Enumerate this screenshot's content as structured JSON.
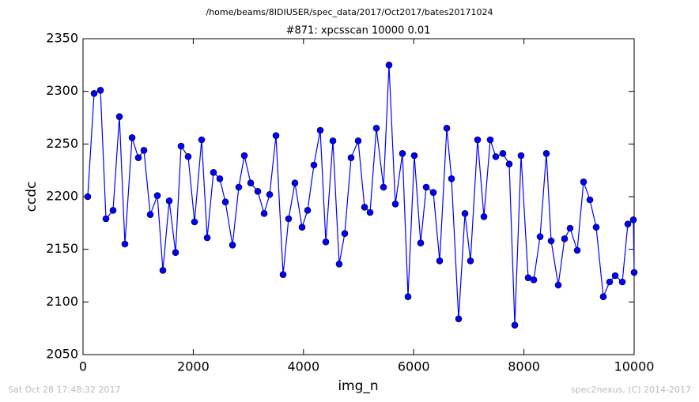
{
  "chart_data": {
    "type": "line",
    "suptitle": "/home/beams/8IDIUSER/spec_data/2017/Oct2017/bates20171024",
    "title": "#871: xpcsscan 10000 0.01",
    "x_label": "img_n",
    "y_label": "ccdc",
    "timestamp": "Sat Oct 28 17:48:32 2017",
    "credit": "spec2nexus, (C) 2014-2017",
    "xlim": [
      0,
      10000
    ],
    "xticks": [
      0,
      2000,
      4000,
      6000,
      8000,
      10000
    ],
    "ylim": [
      2050,
      2350
    ],
    "yticks": [
      2050,
      2100,
      2150,
      2200,
      2250,
      2300,
      2350
    ],
    "grid": false,
    "x": [
      86,
      201,
      316,
      416,
      545,
      660,
      760,
      890,
      1004,
      1105,
      1220,
      1349,
      1449,
      1564,
      1679,
      1779,
      1908,
      2023,
      2152,
      2253,
      2367,
      2482,
      2583,
      2712,
      2826,
      2927,
      3042,
      3171,
      3286,
      3386,
      3501,
      3630,
      3730,
      3845,
      3974,
      4075,
      4189,
      4304,
      4405,
      4534,
      4648,
      4749,
      4864,
      4993,
      5108,
      5208,
      5323,
      5452,
      5552,
      5667,
      5796,
      5897,
      6011,
      6126,
      6227,
      6356,
      6471,
      6600,
      6686,
      6815,
      6930,
      7030,
      7159,
      7274,
      7389,
      7489,
      7618,
      7733,
      7834,
      7948,
      8077,
      8178,
      8293,
      8407,
      8494,
      8623,
      8737,
      8838,
      8967,
      9082,
      9197,
      9311,
      9440,
      9555,
      9656,
      9785,
      9885,
      9986,
      10000
    ],
    "series": [
      {
        "name": "ccdc",
        "color": "#0000ff",
        "values": [
          2200,
          2298,
          2301,
          2179,
          2187,
          2276,
          2155,
          2256,
          2237,
          2244,
          2183,
          2201,
          2130,
          2196,
          2147,
          2248,
          2238,
          2176,
          2254,
          2161,
          2223,
          2217,
          2195,
          2154,
          2209,
          2239,
          2213,
          2205,
          2184,
          2202,
          2258,
          2126,
          2179,
          2213,
          2171,
          2187,
          2230,
          2263,
          2157,
          2253,
          2136,
          2165,
          2237,
          2253,
          2190,
          2185,
          2265,
          2209,
          2325,
          2193,
          2241,
          2105,
          2239,
          2156,
          2209,
          2204,
          2139,
          2265,
          2217,
          2084,
          2184,
          2139,
          2254,
          2181,
          2254,
          2238,
          2241,
          2231,
          2078,
          2239,
          2123,
          2121,
          2162,
          2241,
          2158,
          2116,
          2160,
          2170,
          2149,
          2214,
          2197,
          2171,
          2105,
          2119,
          2125,
          2119,
          2174,
          2178,
          2128
        ]
      }
    ]
  }
}
